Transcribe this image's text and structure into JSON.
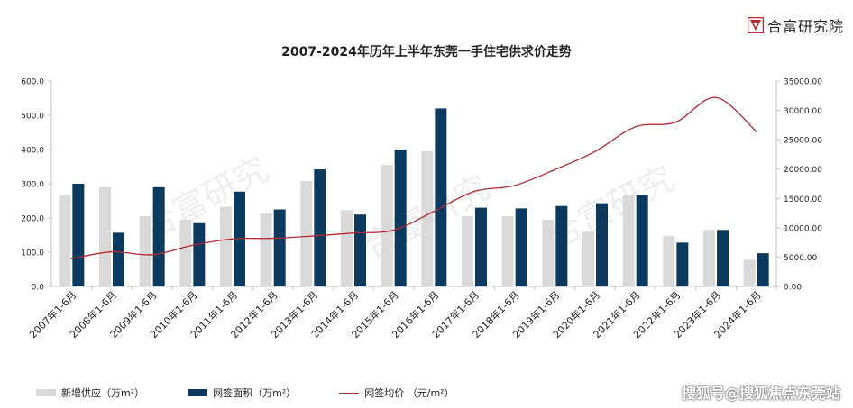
{
  "brand": {
    "name": "合富研究院",
    "logo_icon": "hefu-logo-icon",
    "logo_color": "#c0272d"
  },
  "watermarks": [
    "合富研究",
    "合富研究",
    "合富研究"
  ],
  "footer_watermark": "搜狐号@搜狐焦点东莞站",
  "chart_data": {
    "type": "bar",
    "title": "2007-2024年历年上半年东莞一手住宅供求价走势",
    "categories": [
      "2007年1-6月",
      "2008年1-6月",
      "2009年1-6月",
      "2010年1-6月",
      "2011年1-6月",
      "2012年1-6月",
      "2013年1-6月",
      "2014年1-6月",
      "2015年1-6月",
      "2016年1-6月",
      "2017年1-6月",
      "2018年1-6月",
      "2019年1-6月",
      "2020年1-6月",
      "2021年1-6月",
      "2022年1-6月",
      "2023年1-6月",
      "2024年1-6月"
    ],
    "y_left": {
      "min": 0,
      "max": 600,
      "step": 100,
      "tick_labels": [
        "0.0",
        "100.0",
        "200.0",
        "300.0",
        "400.0",
        "500.0",
        "600.0"
      ]
    },
    "y_right": {
      "min": 0,
      "max": 35000,
      "step": 5000,
      "tick_labels": [
        "0.00",
        "5000.00",
        "10000.00",
        "15000.00",
        "20000.00",
        "25000.00",
        "30000.00",
        "35000.00"
      ]
    },
    "series": [
      {
        "name": "新增供应（万m²）",
        "type": "bar",
        "axis": "left",
        "color": "#d9d9d9",
        "values": [
          268,
          290,
          205,
          195,
          233,
          213,
          308,
          223,
          355,
          395,
          205,
          205,
          195,
          160,
          265,
          147,
          165,
          78
        ]
      },
      {
        "name": "网签面积（万m²）",
        "type": "bar",
        "axis": "left",
        "color": "#0b3a5e",
        "values": [
          300,
          157,
          290,
          185,
          277,
          225,
          342,
          210,
          400,
          520,
          230,
          228,
          235,
          243,
          268,
          128,
          165,
          97
        ]
      },
      {
        "name": "网签均价  （元/m²）",
        "type": "line",
        "axis": "right",
        "color": "#b5282e",
        "values": [
          4700,
          5900,
          5400,
          7000,
          8100,
          8200,
          8600,
          9100,
          9600,
          12800,
          16200,
          17200,
          19900,
          23000,
          27200,
          28000,
          32200,
          26400
        ]
      }
    ],
    "legend_position": "bottom",
    "grid": false
  }
}
